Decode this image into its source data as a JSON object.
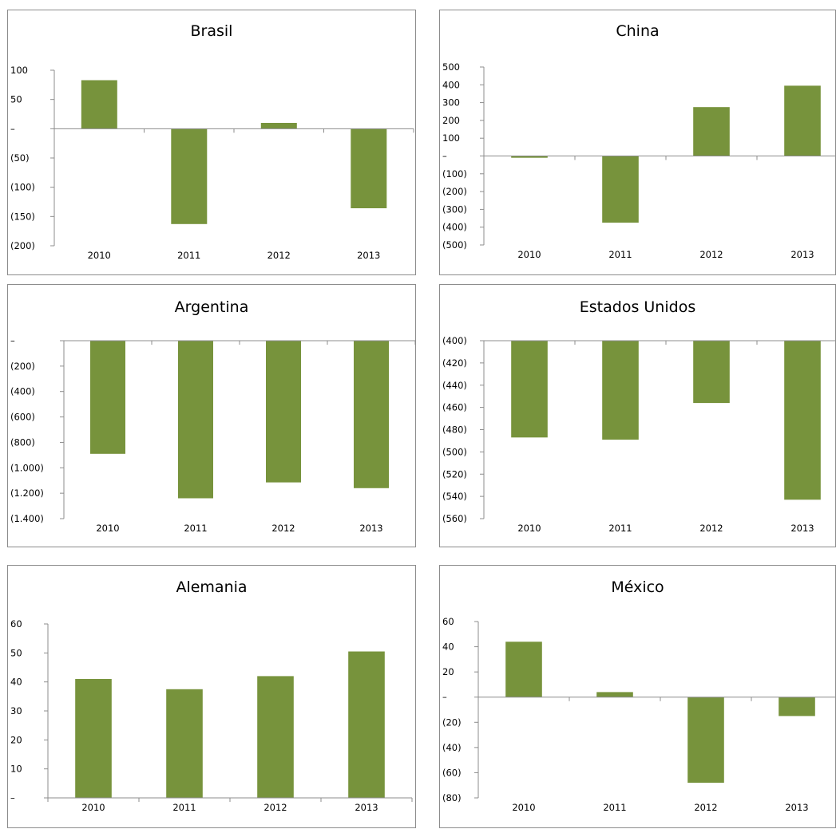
{
  "bar_color": "#77933c",
  "axis_color": "#8c8c8c",
  "chart_data": [
    {
      "type": "bar",
      "title": "Brasil",
      "categories": [
        "2010",
        "2011",
        "2012",
        "2013"
      ],
      "values": [
        83,
        -163,
        10,
        -136
      ],
      "ylim": [
        -200,
        100
      ],
      "yticks": [
        100,
        50,
        0,
        -50,
        -100,
        -150,
        -200
      ],
      "ytick_labels": [
        "100",
        "50",
        "–",
        "(50)",
        "(100)",
        "(150)",
        "(200)"
      ],
      "xlabel": "",
      "ylabel": "",
      "grid": false,
      "legend": "none"
    },
    {
      "type": "bar",
      "title": "China",
      "categories": [
        "2010",
        "2011",
        "2012",
        "2013"
      ],
      "values": [
        -10,
        -375,
        275,
        395
      ],
      "ylim": [
        -500,
        500
      ],
      "yticks": [
        500,
        400,
        300,
        200,
        100,
        0,
        -100,
        -200,
        -300,
        -400,
        -500
      ],
      "ytick_labels": [
        "500",
        "400",
        "300",
        "200",
        "100",
        "–",
        "(100)",
        "(200)",
        "(300)",
        "(400)",
        "(500)"
      ],
      "xlabel": "",
      "ylabel": "",
      "grid": false,
      "legend": "none"
    },
    {
      "type": "bar",
      "title": "Argentina",
      "categories": [
        "2010",
        "2011",
        "2012",
        "2013"
      ],
      "values": [
        -890,
        -1240,
        -1115,
        -1160
      ],
      "ylim": [
        -1400,
        0
      ],
      "yticks": [
        0,
        -200,
        -400,
        -600,
        -800,
        -1000,
        -1200,
        -1400
      ],
      "ytick_labels": [
        "–",
        "(200)",
        "(400)",
        "(600)",
        "(800)",
        "(1.000)",
        "(1.200)",
        "(1.400)"
      ],
      "xlabel": "",
      "ylabel": "",
      "grid": false,
      "legend": "none"
    },
    {
      "type": "bar",
      "title": "Estados Unidos",
      "categories": [
        "2010",
        "2011",
        "2012",
        "2013"
      ],
      "values": [
        -487,
        -489,
        -456,
        -543
      ],
      "ylim": [
        -560,
        -400
      ],
      "yticks": [
        -400,
        -420,
        -440,
        -460,
        -480,
        -500,
        -520,
        -540,
        -560
      ],
      "ytick_labels": [
        "(400)",
        "(420)",
        "(440)",
        "(460)",
        "(480)",
        "(500)",
        "(520)",
        "(540)",
        "(560)"
      ],
      "xlabel": "",
      "ylabel": "",
      "grid": false,
      "legend": "none"
    },
    {
      "type": "bar",
      "title": "Alemania",
      "categories": [
        "2010",
        "2011",
        "2012",
        "2013"
      ],
      "values": [
        41,
        37.5,
        42,
        50.5
      ],
      "ylim": [
        0,
        60
      ],
      "yticks": [
        60,
        50,
        40,
        30,
        20,
        10,
        0
      ],
      "ytick_labels": [
        "60",
        "50",
        "40",
        "30",
        "20",
        "10",
        "–"
      ],
      "xlabel": "",
      "ylabel": "",
      "grid": false,
      "legend": "none"
    },
    {
      "type": "bar",
      "title": "México",
      "categories": [
        "2010",
        "2011",
        "2012",
        "2013"
      ],
      "values": [
        44,
        4,
        -68,
        -15
      ],
      "ylim": [
        -80,
        60
      ],
      "yticks": [
        60,
        40,
        20,
        0,
        -20,
        -40,
        -60,
        -80
      ],
      "ytick_labels": [
        "60",
        "40",
        "20",
        "–",
        "(20)",
        "(40)",
        "(60)",
        "(80)"
      ],
      "xlabel": "",
      "ylabel": "",
      "grid": false,
      "legend": "none"
    }
  ]
}
